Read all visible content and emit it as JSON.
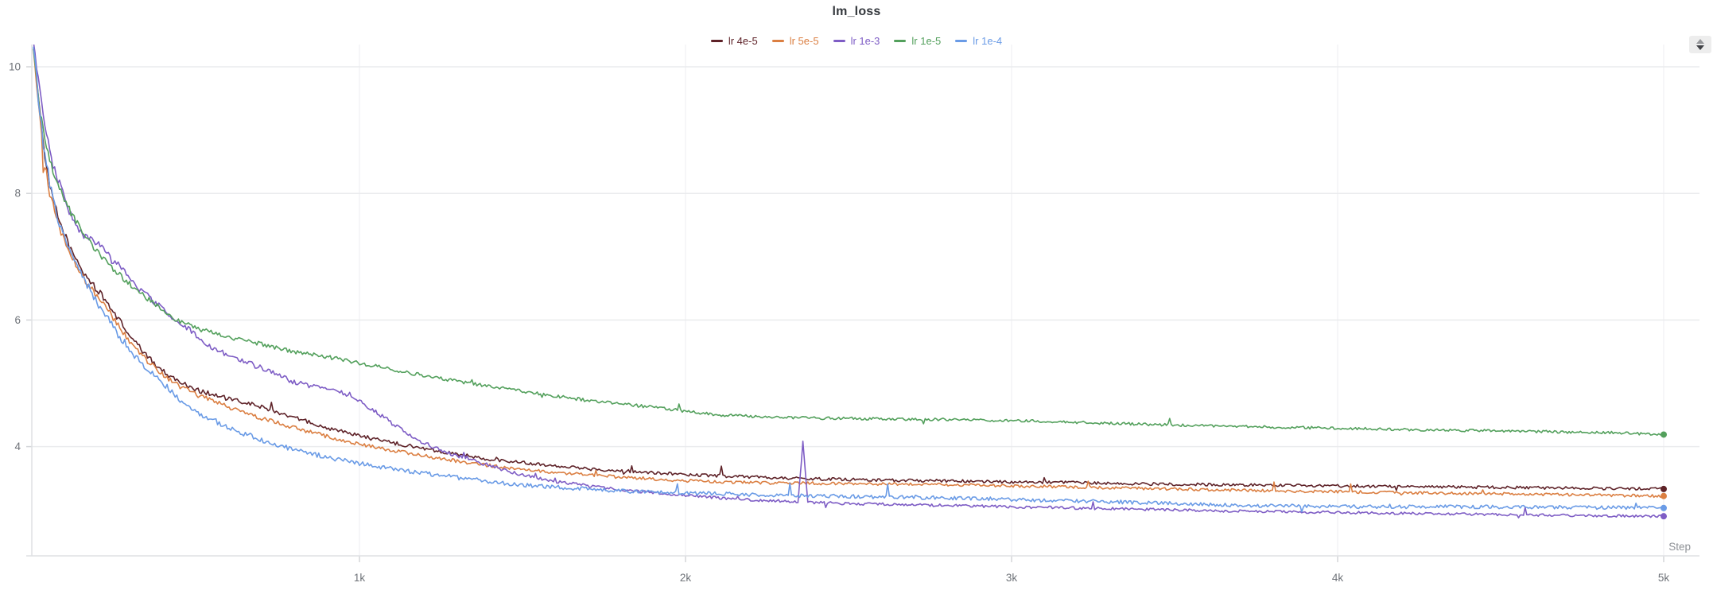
{
  "chart_data": {
    "type": "line",
    "title": "lm_loss",
    "xlabel": "Step",
    "xlim": [
      0,
      5000
    ],
    "ylim": [
      2.27,
      10.35
    ],
    "grid": true,
    "legend_position": "top-center",
    "x_ticks": [
      {
        "value": 1000,
        "label": "1k"
      },
      {
        "value": 2000,
        "label": "2k"
      },
      {
        "value": 3000,
        "label": "3k"
      },
      {
        "value": 4000,
        "label": "4k"
      },
      {
        "value": 5000,
        "label": "5k"
      }
    ],
    "y_ticks": [
      4,
      6,
      8,
      10
    ],
    "series": [
      {
        "name": "lr 4e-5",
        "color": "#5e2228",
        "noise": 0.022,
        "final_value": 3.33,
        "points": [
          [
            0,
            10.35
          ],
          [
            15,
            9.6
          ],
          [
            30,
            8.75
          ],
          [
            50,
            8.1
          ],
          [
            80,
            7.55
          ],
          [
            120,
            7.05
          ],
          [
            160,
            6.7
          ],
          [
            200,
            6.45
          ],
          [
            250,
            6.1
          ],
          [
            300,
            5.72
          ],
          [
            350,
            5.42
          ],
          [
            400,
            5.18
          ],
          [
            450,
            5.02
          ],
          [
            500,
            4.9
          ],
          [
            600,
            4.75
          ],
          [
            700,
            4.63
          ],
          [
            800,
            4.46
          ],
          [
            900,
            4.3
          ],
          [
            1000,
            4.17
          ],
          [
            1100,
            4.06
          ],
          [
            1200,
            3.97
          ],
          [
            1300,
            3.88
          ],
          [
            1400,
            3.8
          ],
          [
            1500,
            3.75
          ],
          [
            1600,
            3.7
          ],
          [
            1700,
            3.65
          ],
          [
            1800,
            3.62
          ],
          [
            1900,
            3.59
          ],
          [
            2000,
            3.56
          ],
          [
            2200,
            3.52
          ],
          [
            2400,
            3.49
          ],
          [
            2600,
            3.47
          ],
          [
            2800,
            3.46
          ],
          [
            3000,
            3.44
          ],
          [
            3200,
            3.43
          ],
          [
            3400,
            3.41
          ],
          [
            3600,
            3.4
          ],
          [
            3800,
            3.39
          ],
          [
            4000,
            3.38
          ],
          [
            4200,
            3.37
          ],
          [
            4400,
            3.36
          ],
          [
            4600,
            3.35
          ],
          [
            4800,
            3.34
          ],
          [
            5000,
            3.33
          ]
        ]
      },
      {
        "name": "lr 5e-5",
        "color": "#db7f42",
        "noise": 0.022,
        "final_value": 3.22,
        "points": [
          [
            0,
            10.3
          ],
          [
            15,
            9.4
          ],
          [
            30,
            8.6
          ],
          [
            50,
            8.0
          ],
          [
            80,
            7.45
          ],
          [
            120,
            6.95
          ],
          [
            160,
            6.6
          ],
          [
            200,
            6.35
          ],
          [
            250,
            6.0
          ],
          [
            300,
            5.62
          ],
          [
            350,
            5.35
          ],
          [
            400,
            5.12
          ],
          [
            450,
            4.95
          ],
          [
            500,
            4.82
          ],
          [
            600,
            4.62
          ],
          [
            700,
            4.45
          ],
          [
            800,
            4.3
          ],
          [
            900,
            4.16
          ],
          [
            1000,
            4.04
          ],
          [
            1100,
            3.94
          ],
          [
            1200,
            3.85
          ],
          [
            1300,
            3.77
          ],
          [
            1400,
            3.7
          ],
          [
            1500,
            3.64
          ],
          [
            1600,
            3.59
          ],
          [
            1700,
            3.55
          ],
          [
            1800,
            3.52
          ],
          [
            1900,
            3.49
          ],
          [
            2000,
            3.46
          ],
          [
            2200,
            3.43
          ],
          [
            2400,
            3.42
          ],
          [
            2600,
            3.41
          ],
          [
            2800,
            3.4
          ],
          [
            3000,
            3.38
          ],
          [
            3200,
            3.36
          ],
          [
            3400,
            3.34
          ],
          [
            3600,
            3.32
          ],
          [
            3800,
            3.3
          ],
          [
            4000,
            3.29
          ],
          [
            4200,
            3.27
          ],
          [
            4400,
            3.26
          ],
          [
            4600,
            3.25
          ],
          [
            4800,
            3.23
          ],
          [
            5000,
            3.22
          ]
        ]
      },
      {
        "name": "lr 1e-3",
        "color": "#7e5dc5",
        "noise": 0.02,
        "final_value": 2.9,
        "points": [
          [
            0,
            10.35
          ],
          [
            20,
            9.6
          ],
          [
            40,
            8.9
          ],
          [
            60,
            8.45
          ],
          [
            90,
            8.0
          ],
          [
            120,
            7.6
          ],
          [
            150,
            7.35
          ],
          [
            180,
            7.25
          ],
          [
            210,
            7.15
          ],
          [
            240,
            6.95
          ],
          [
            270,
            6.82
          ],
          [
            300,
            6.65
          ],
          [
            340,
            6.42
          ],
          [
            390,
            6.2
          ],
          [
            440,
            6.0
          ],
          [
            500,
            5.75
          ],
          [
            560,
            5.52
          ],
          [
            620,
            5.4
          ],
          [
            700,
            5.24
          ],
          [
            800,
            5.02
          ],
          [
            900,
            4.9
          ],
          [
            970,
            4.82
          ],
          [
            1050,
            4.55
          ],
          [
            1120,
            4.3
          ],
          [
            1200,
            4.05
          ],
          [
            1300,
            3.85
          ],
          [
            1400,
            3.7
          ],
          [
            1500,
            3.55
          ],
          [
            1600,
            3.45
          ],
          [
            1700,
            3.38
          ],
          [
            1800,
            3.32
          ],
          [
            1900,
            3.27
          ],
          [
            2000,
            3.23
          ],
          [
            2100,
            3.19
          ],
          [
            2200,
            3.16
          ],
          [
            2330,
            3.13
          ],
          [
            2345,
            3.12
          ],
          [
            2360,
            4.06
          ],
          [
            2375,
            3.12
          ],
          [
            2500,
            3.1
          ],
          [
            2700,
            3.08
          ],
          [
            2900,
            3.06
          ],
          [
            3100,
            3.04
          ],
          [
            3300,
            3.02
          ],
          [
            3500,
            3.0
          ],
          [
            3700,
            2.98
          ],
          [
            4000,
            2.96
          ],
          [
            4300,
            2.94
          ],
          [
            4600,
            2.92
          ],
          [
            4800,
            2.91
          ],
          [
            5000,
            2.9
          ]
        ]
      },
      {
        "name": "lr 1e-5",
        "color": "#53a05c",
        "noise": 0.02,
        "final_value": 4.19,
        "points": [
          [
            0,
            10.3
          ],
          [
            20,
            9.3
          ],
          [
            40,
            8.7
          ],
          [
            60,
            8.35
          ],
          [
            90,
            7.95
          ],
          [
            120,
            7.65
          ],
          [
            150,
            7.4
          ],
          [
            200,
            7.05
          ],
          [
            250,
            6.78
          ],
          [
            300,
            6.55
          ],
          [
            360,
            6.3
          ],
          [
            440,
            6.0
          ],
          [
            500,
            5.87
          ],
          [
            600,
            5.72
          ],
          [
            700,
            5.62
          ],
          [
            800,
            5.5
          ],
          [
            900,
            5.42
          ],
          [
            1000,
            5.32
          ],
          [
            1100,
            5.22
          ],
          [
            1200,
            5.12
          ],
          [
            1300,
            5.03
          ],
          [
            1400,
            4.95
          ],
          [
            1530,
            4.85
          ],
          [
            1700,
            4.73
          ],
          [
            1850,
            4.65
          ],
          [
            2000,
            4.56
          ],
          [
            2100,
            4.5
          ],
          [
            2250,
            4.47
          ],
          [
            2400,
            4.45
          ],
          [
            2600,
            4.44
          ],
          [
            2900,
            4.42
          ],
          [
            3100,
            4.4
          ],
          [
            3300,
            4.37
          ],
          [
            3500,
            4.34
          ],
          [
            3700,
            4.32
          ],
          [
            3900,
            4.3
          ],
          [
            4100,
            4.28
          ],
          [
            4300,
            4.26
          ],
          [
            4500,
            4.25
          ],
          [
            4700,
            4.23
          ],
          [
            4850,
            4.22
          ],
          [
            5000,
            4.19
          ]
        ]
      },
      {
        "name": "lr 1e-4",
        "color": "#6a9be6",
        "noise": 0.028,
        "final_value": 3.03,
        "points": [
          [
            0,
            10.35
          ],
          [
            15,
            9.5
          ],
          [
            30,
            8.8
          ],
          [
            50,
            8.15
          ],
          [
            80,
            7.5
          ],
          [
            120,
            7.0
          ],
          [
            160,
            6.6
          ],
          [
            200,
            6.25
          ],
          [
            250,
            5.85
          ],
          [
            300,
            5.5
          ],
          [
            340,
            5.28
          ],
          [
            400,
            5.0
          ],
          [
            450,
            4.75
          ],
          [
            500,
            4.55
          ],
          [
            600,
            4.3
          ],
          [
            700,
            4.1
          ],
          [
            800,
            3.95
          ],
          [
            900,
            3.83
          ],
          [
            1000,
            3.73
          ],
          [
            1100,
            3.65
          ],
          [
            1200,
            3.58
          ],
          [
            1300,
            3.51
          ],
          [
            1400,
            3.45
          ],
          [
            1530,
            3.38
          ],
          [
            1700,
            3.33
          ],
          [
            1800,
            3.3
          ],
          [
            2000,
            3.27
          ],
          [
            2200,
            3.24
          ],
          [
            2400,
            3.22
          ],
          [
            2700,
            3.2
          ],
          [
            2900,
            3.18
          ],
          [
            3100,
            3.15
          ],
          [
            3300,
            3.13
          ],
          [
            3500,
            3.1
          ],
          [
            3700,
            3.07
          ],
          [
            3900,
            3.06
          ],
          [
            4100,
            3.05
          ],
          [
            4400,
            3.05
          ],
          [
            4700,
            3.04
          ],
          [
            5000,
            3.03
          ]
        ]
      }
    ]
  },
  "icons": {
    "triangle_up": "collapse",
    "triangle_down": "expand"
  },
  "colors": {
    "title_text": "#33373c",
    "tick_text": "#6e7278",
    "step_text": "#8e9196",
    "grid_horizontal": "#eaebed",
    "grid_vertical": "#f3f4f5",
    "axis_line": "#dfe1e4",
    "tick_mark": "#d4d6d9",
    "background": "#ffffff"
  }
}
